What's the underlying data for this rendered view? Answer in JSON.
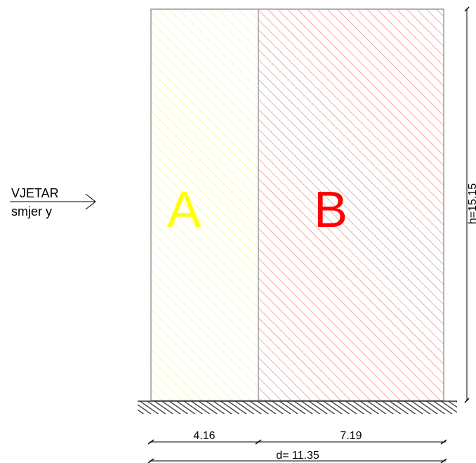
{
  "wind": {
    "label": "VJETAR",
    "direction": "smjer y"
  },
  "zones": [
    {
      "letter": "A",
      "color": "#ffff00",
      "hatch_color": "#f4f48a"
    },
    {
      "letter": "B",
      "color": "#ff0000",
      "hatch_color": "#f07070"
    }
  ],
  "dimensions": {
    "zone_a": "4.16",
    "zone_b": "7.19",
    "depth": "d= 11.35",
    "height": "h=15.15"
  },
  "colors": {
    "outline": "#9a9a9a",
    "ground": "#333333"
  }
}
